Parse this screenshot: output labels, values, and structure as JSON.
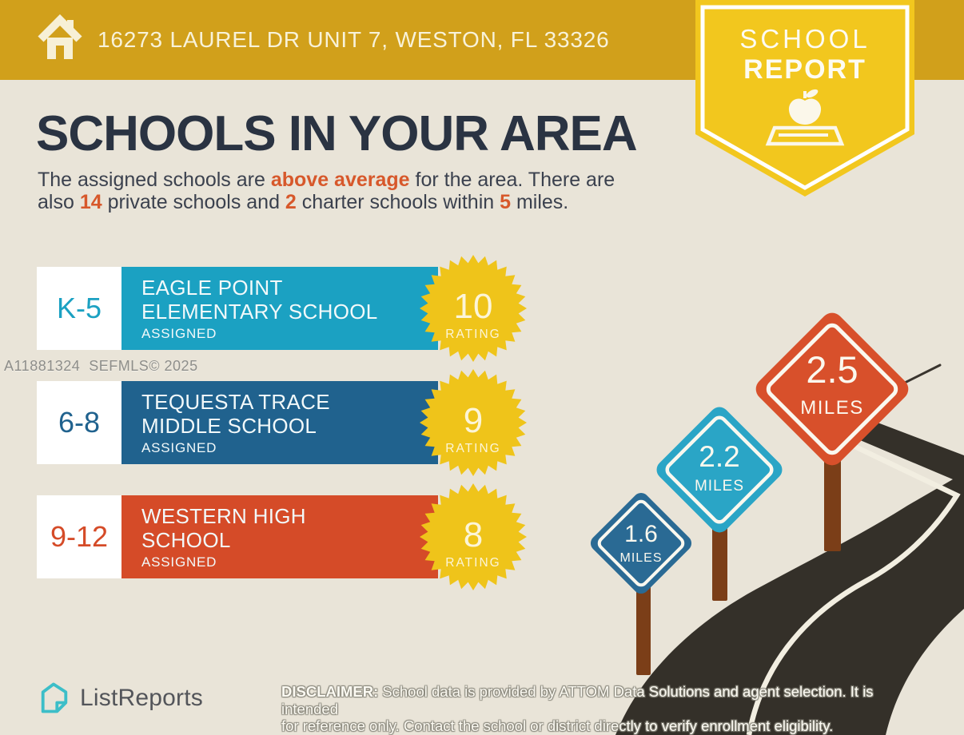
{
  "header": {
    "address": "16273 LAUREL DR UNIT 7, WESTON, FL 33326"
  },
  "badge": {
    "line1": "SCHOOL",
    "line2": "REPORT"
  },
  "title": "SCHOOLS IN YOUR AREA",
  "subtitle": {
    "lines": [
      [
        {
          "t": "The assigned schools are ",
          "h": false
        },
        {
          "t": "above average",
          "h": true
        },
        {
          "t": " for the area. There are",
          "h": false
        }
      ],
      [
        {
          "t": "also ",
          "h": false
        },
        {
          "t": "14",
          "h": true
        },
        {
          "t": " private schools and ",
          "h": false
        },
        {
          "t": "2",
          "h": true
        },
        {
          "t": " charter schools within ",
          "h": false
        },
        {
          "t": "5",
          "h": true
        },
        {
          "t": " miles.",
          "h": false
        }
      ]
    ]
  },
  "watermark": "A11881324  SEFMLS© 2025",
  "schools": [
    {
      "grades": "K-5",
      "name": "EAGLE POINT ELEMENTARY SCHOOL",
      "name_lines": [
        "EAGLE POINT",
        "ELEMENTARY SCHOOL"
      ],
      "status": "ASSIGNED",
      "rating": "10",
      "rating_label": "RATING",
      "color": "#1BA1C2"
    },
    {
      "grades": "6-8",
      "name": "TEQUESTA TRACE MIDDLE SCHOOL",
      "name_lines": [
        "TEQUESTA TRACE",
        "MIDDLE SCHOOL"
      ],
      "status": "ASSIGNED",
      "rating": "9",
      "rating_label": "RATING",
      "color": "#20628E"
    },
    {
      "grades": "9-12",
      "name": "WESTERN HIGH SCHOOL",
      "name_lines": [
        "WESTERN HIGH",
        "SCHOOL"
      ],
      "status": "ASSIGNED",
      "rating": "8",
      "rating_label": "RATING",
      "color": "#D54B28"
    }
  ],
  "signs": [
    {
      "distance": "1.6",
      "unit": "MILES",
      "color": "#2A6A94"
    },
    {
      "distance": "2.2",
      "unit": "MILES",
      "color": "#2AA5C6"
    },
    {
      "distance": "2.5",
      "unit": "MILES",
      "color": "#D8502B"
    }
  ],
  "footer": {
    "brand": "ListReports",
    "disclaimer_label": "DISCLAIMER:",
    "disclaimer_line1": "School data is provided by ATTOM Data Solutions and agent selection. It is intended",
    "disclaimer_line2": "for reference only. Contact the school or district directly to verify enrollment eligibility."
  },
  "colors": {
    "topbar_gold": "#D1A01B",
    "badge_yellow": "#F2C71E",
    "background_cream": "#E9E4D8",
    "heading_navy": "#2A3342",
    "accent_orange": "#D7582B",
    "starburst_yellow": "#EFC41A",
    "road_dark": "#343029",
    "post_brown": "#7B3E18",
    "brand_teal": "#3CBEC8"
  }
}
